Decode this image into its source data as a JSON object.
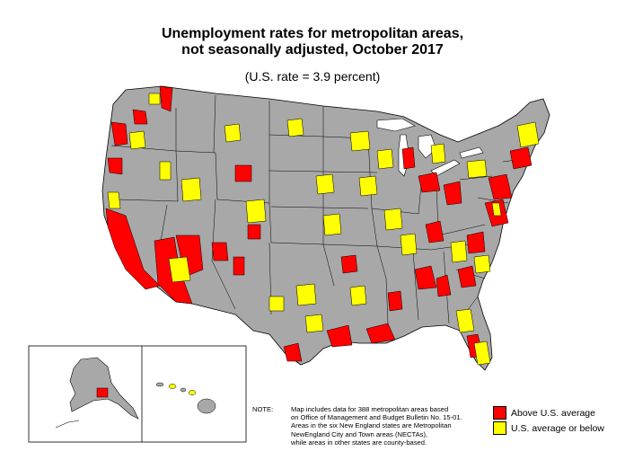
{
  "title_line1": "Unemployment rates for metropolitan areas,",
  "title_line2": "not seasonally adjusted, October 2017",
  "subtitle": "(U.S. rate = 3.9 percent)",
  "colors": {
    "land": "#a8a8a8",
    "above": "#ff0000",
    "below": "#ffff00",
    "border": "#000000"
  },
  "note": {
    "label": "NOTE:",
    "lines": [
      "Map includes data for 388 metropolitan areas based",
      "on Office of Management and Budget Bulletin No. 15-01.",
      "Areas in the six New England states are Metropolitan",
      "NewEngland City and Town areas (NECTAs),",
      "while areas in other states are county-based."
    ]
  },
  "legend": [
    {
      "label": "Above U.S. average",
      "color": "#ff0000"
    },
    {
      "label": "U.S. average or below",
      "color": "#ffff00"
    }
  ]
}
